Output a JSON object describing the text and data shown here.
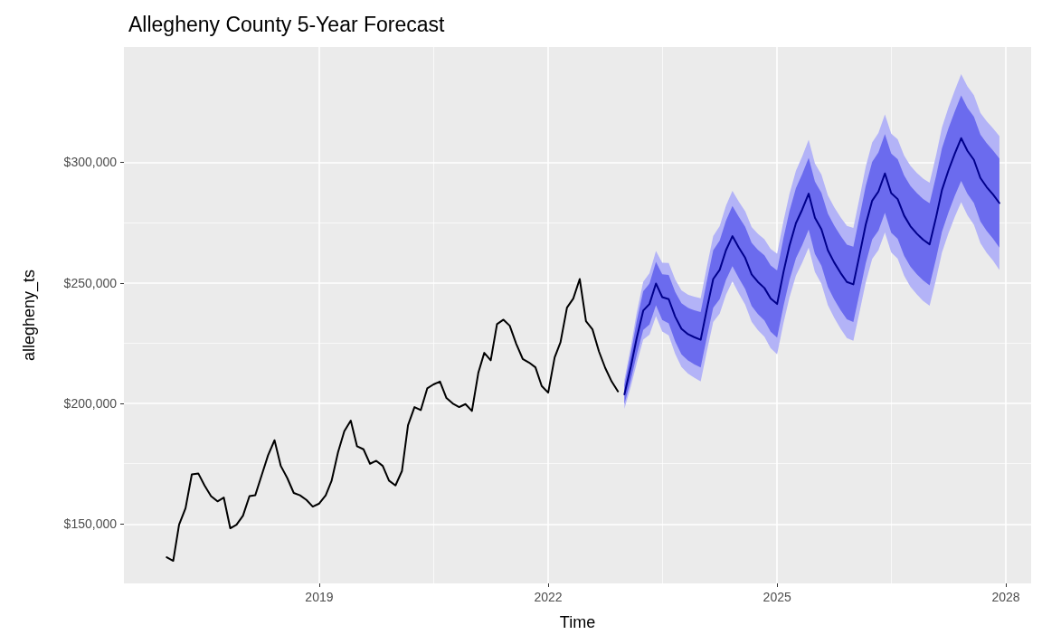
{
  "chart_data": {
    "type": "line",
    "title": "Allegheny County 5-Year Forecast",
    "xlabel": "Time",
    "ylabel": "allegheny_ts",
    "xlim": [
      "2016-06-10",
      "2028-05-01"
    ],
    "xticks": [
      "2019",
      "2022",
      "2025",
      "2028"
    ],
    "ylim": [
      125400,
      347800
    ],
    "yticks": [
      {
        "value": 150000,
        "label": "$150,000"
      },
      {
        "value": 200000,
        "label": "$200,000"
      },
      {
        "value": 250000,
        "label": "$250,000"
      },
      {
        "value": 300000,
        "label": "$300,000"
      }
    ],
    "grid": true,
    "line_style": "solid",
    "marker": "none",
    "series": [
      {
        "color": "#000000",
        "x": [
          "2017-01",
          "2017-02",
          "2017-03",
          "2017-04",
          "2017-05",
          "2017-06",
          "2017-07",
          "2017-08",
          "2017-09",
          "2017-10",
          "2017-11",
          "2017-12",
          "2018-01",
          "2018-02",
          "2018-03",
          "2018-04",
          "2018-05",
          "2018-06",
          "2018-07",
          "2018-08",
          "2018-09",
          "2018-10",
          "2018-11",
          "2018-12",
          "2019-01",
          "2019-02",
          "2019-03",
          "2019-04",
          "2019-05",
          "2019-06",
          "2019-07",
          "2019-08",
          "2019-09",
          "2019-10",
          "2019-11",
          "2019-12",
          "2020-01",
          "2020-02",
          "2020-03",
          "2020-04",
          "2020-05",
          "2020-06",
          "2020-07",
          "2020-08",
          "2020-09",
          "2020-10",
          "2020-11",
          "2020-12",
          "2021-01",
          "2021-02",
          "2021-03",
          "2021-04",
          "2021-05",
          "2021-06",
          "2021-07",
          "2021-08",
          "2021-09",
          "2021-10",
          "2021-11",
          "2021-12",
          "2022-01",
          "2022-02",
          "2022-03",
          "2022-04",
          "2022-05",
          "2022-06",
          "2022-07",
          "2022-08",
          "2022-09",
          "2022-10",
          "2022-11",
          "2022-12"
        ],
        "values": [
          136250,
          134750,
          149750,
          156600,
          170600,
          171000,
          166000,
          161600,
          159400,
          161000,
          148250,
          149750,
          153500,
          161600,
          162000,
          170400,
          178500,
          184750,
          174100,
          169100,
          162900,
          161900,
          160000,
          157250,
          158500,
          161900,
          167900,
          179750,
          188500,
          192900,
          182250,
          181000,
          175000,
          176250,
          174100,
          168000,
          166000,
          172000,
          191000,
          198500,
          197250,
          206250,
          207900,
          209100,
          202250,
          200000,
          198500,
          199750,
          196900,
          212900,
          221000,
          217900,
          232900,
          234750,
          232250,
          224750,
          218500,
          217000,
          215000,
          207250,
          204500,
          219100,
          225400,
          239750,
          243500,
          251600,
          234100,
          230750,
          221600,
          214750,
          209100,
          205000
        ]
      },
      {
        "color": "#b3b3f7",
        "x": [
          "2023-01",
          "2023-02",
          "2023-03",
          "2023-04",
          "2023-05",
          "2023-06",
          "2023-07",
          "2023-08",
          "2023-09",
          "2023-10",
          "2023-11",
          "2023-12",
          "2024-01",
          "2024-02",
          "2024-03",
          "2024-04",
          "2024-05",
          "2024-06",
          "2024-07",
          "2024-08",
          "2024-09",
          "2024-10",
          "2024-11",
          "2024-12",
          "2025-01",
          "2025-02",
          "2025-03",
          "2025-04",
          "2025-05",
          "2025-06",
          "2025-07",
          "2025-08",
          "2025-09",
          "2025-10",
          "2025-11",
          "2025-12",
          "2026-01",
          "2026-02",
          "2026-03",
          "2026-04",
          "2026-05",
          "2026-06",
          "2026-07",
          "2026-08",
          "2026-09",
          "2026-10",
          "2026-11",
          "2026-12",
          "2027-01",
          "2027-02",
          "2027-03",
          "2027-04",
          "2027-05",
          "2027-06",
          "2027-07",
          "2027-08",
          "2027-09",
          "2027-10",
          "2027-11",
          "2027-12"
        ],
        "values": [
          null,
          null,
          null,
          null,
          null,
          null,
          null,
          null,
          null,
          null,
          null,
          null,
          null,
          null,
          null,
          null,
          null,
          null,
          null,
          null,
          null,
          null,
          null,
          null,
          null,
          null,
          null,
          null,
          null,
          null,
          null,
          null,
          null,
          null,
          null,
          null,
          null,
          null,
          null,
          null,
          null,
          null,
          null,
          null,
          null,
          null,
          null,
          null,
          null,
          null,
          null,
          null,
          null,
          null,
          null,
          null,
          null,
          null,
          null,
          null
        ],
        "lower": [
          197750,
          207150,
          216750,
          226500,
          228500,
          236250,
          229850,
          228250,
          220550,
          215100,
          212400,
          210700,
          209150,
          222200,
          233750,
          237250,
          245050,
          250650,
          245700,
          241050,
          233850,
          230450,
          227650,
          222950,
          220400,
          233600,
          243950,
          253000,
          258350,
          264650,
          254500,
          249600,
          240700,
          235550,
          231000,
          227150,
          226000,
          238550,
          250100,
          259950,
          263600,
          270950,
          262650,
          260000,
          253000,
          248450,
          245200,
          242550,
          240500,
          251600,
          262550,
          270500,
          277250,
          283450,
          278050,
          274150,
          266500,
          262450,
          259150,
          255350
        ],
        "upper": [
          209750,
          223650,
          237750,
          250500,
          254000,
          263250,
          258350,
          258250,
          251450,
          246900,
          245100,
          244300,
          243650,
          257300,
          269450,
          273550,
          281950,
          288150,
          283800,
          279750,
          273150,
          270350,
          268150,
          264050,
          262100,
          275900,
          286850,
          296500,
          302450,
          309350,
          299500,
          294900,
          286300,
          281450,
          277200,
          273650,
          272800,
          285950,
          298100,
          308250,
          312200,
          319850,
          311850,
          309500,
          302800,
          298550,
          295600,
          293250,
          291500,
          302900,
          314450,
          322700,
          329750,
          336550,
          331450,
          327850,
          320500,
          317050,
          314050,
          310850
        ]
      },
      {
        "color": "#6b6bee",
        "x": [
          "2023-01",
          "2023-02",
          "2023-03",
          "2023-04",
          "2023-05",
          "2023-06",
          "2023-07",
          "2023-08",
          "2023-09",
          "2023-10",
          "2023-11",
          "2023-12",
          "2024-01",
          "2024-02",
          "2024-03",
          "2024-04",
          "2024-05",
          "2024-06",
          "2024-07",
          "2024-08",
          "2024-09",
          "2024-10",
          "2024-11",
          "2024-12",
          "2025-01",
          "2025-02",
          "2025-03",
          "2025-04",
          "2025-05",
          "2025-06",
          "2025-07",
          "2025-08",
          "2025-09",
          "2025-10",
          "2025-11",
          "2025-12",
          "2026-01",
          "2026-02",
          "2026-03",
          "2026-04",
          "2026-05",
          "2026-06",
          "2026-07",
          "2026-08",
          "2026-09",
          "2026-10",
          "2026-11",
          "2026-12",
          "2027-01",
          "2027-02",
          "2027-03",
          "2027-04",
          "2027-05",
          "2027-06",
          "2027-07",
          "2027-08",
          "2027-09",
          "2027-10",
          "2027-11",
          "2027-12"
        ],
        "values": [
          null,
          null,
          null,
          null,
          null,
          null,
          null,
          null,
          null,
          null,
          null,
          null,
          null,
          null,
          null,
          null,
          null,
          null,
          null,
          null,
          null,
          null,
          null,
          null,
          null,
          null,
          null,
          null,
          null,
          null,
          null,
          null,
          null,
          null,
          null,
          null,
          null,
          null,
          null,
          null,
          null,
          null,
          null,
          null,
          null,
          null,
          null,
          null,
          null,
          null,
          null,
          null,
          null,
          null,
          null,
          null,
          null,
          null,
          null,
          null
        ],
        "lower": [
          199750,
          209900,
          220250,
          230500,
          232750,
          240750,
          234600,
          233250,
          225700,
          220400,
          217850,
          216300,
          214900,
          228050,
          239700,
          243300,
          251200,
          256900,
          252050,
          247500,
          240400,
          237100,
          234400,
          229800,
          227350,
          240650,
          251100,
          260250,
          265700,
          272100,
          262000,
          257150,
          248300,
          243200,
          238700,
          234900,
          233800,
          246450,
          258100,
          268000,
          271700,
          279100,
          270850,
          268250,
          261300,
          256800,
          253600,
          251000,
          249000,
          260150,
          271200,
          279200,
          286000,
          292300,
          286950,
          283100,
          275500,
          271550,
          268300,
          264600
        ],
        "upper": [
          207750,
          220900,
          234250,
          246500,
          249750,
          258750,
          253600,
          253250,
          246300,
          241600,
          239650,
          238700,
          237900,
          251450,
          263500,
          267500,
          275800,
          281900,
          277450,
          273300,
          266600,
          263700,
          261400,
          257200,
          255150,
          268850,
          279700,
          289250,
          295100,
          301900,
          292000,
          287350,
          278700,
          273800,
          269500,
          265900,
          265000,
          278050,
          290100,
          300200,
          304100,
          311700,
          303650,
          301250,
          294500,
          290200,
          287200,
          284800,
          283000,
          294350,
          305800,
          314000,
          321000,
          327700,
          322550,
          318900,
          311500,
          307950,
          304900,
          301600
        ]
      },
      {
        "color": "#00008b",
        "x": [
          "2023-01",
          "2023-02",
          "2023-03",
          "2023-04",
          "2023-05",
          "2023-06",
          "2023-07",
          "2023-08",
          "2023-09",
          "2023-10",
          "2023-11",
          "2023-12",
          "2024-01",
          "2024-02",
          "2024-03",
          "2024-04",
          "2024-05",
          "2024-06",
          "2024-07",
          "2024-08",
          "2024-09",
          "2024-10",
          "2024-11",
          "2024-12",
          "2025-01",
          "2025-02",
          "2025-03",
          "2025-04",
          "2025-05",
          "2025-06",
          "2025-07",
          "2025-08",
          "2025-09",
          "2025-10",
          "2025-11",
          "2025-12",
          "2026-01",
          "2026-02",
          "2026-03",
          "2026-04",
          "2026-05",
          "2026-06",
          "2026-07",
          "2026-08",
          "2026-09",
          "2026-10",
          "2026-11",
          "2026-12",
          "2027-01",
          "2027-02",
          "2027-03",
          "2027-04",
          "2027-05",
          "2027-06",
          "2027-07",
          "2027-08",
          "2027-09",
          "2027-10",
          "2027-11",
          "2027-12"
        ],
        "values": [
          203750,
          215400,
          227250,
          238500,
          241250,
          249750,
          244100,
          243250,
          236000,
          231000,
          228750,
          227500,
          226400,
          239750,
          251600,
          255400,
          263500,
          269400,
          264750,
          260400,
          253500,
          250400,
          247900,
          243500,
          241250,
          254750,
          265400,
          274750,
          280400,
          287000,
          277000,
          272250,
          263500,
          258500,
          254100,
          250400,
          249400,
          262250,
          274100,
          284100,
          287900,
          295400,
          287250,
          284750,
          277900,
          273500,
          270400,
          267900,
          266000,
          277250,
          288500,
          296600,
          303500,
          310000,
          304750,
          301000,
          293500,
          289750,
          286600,
          283100
        ]
      }
    ]
  }
}
